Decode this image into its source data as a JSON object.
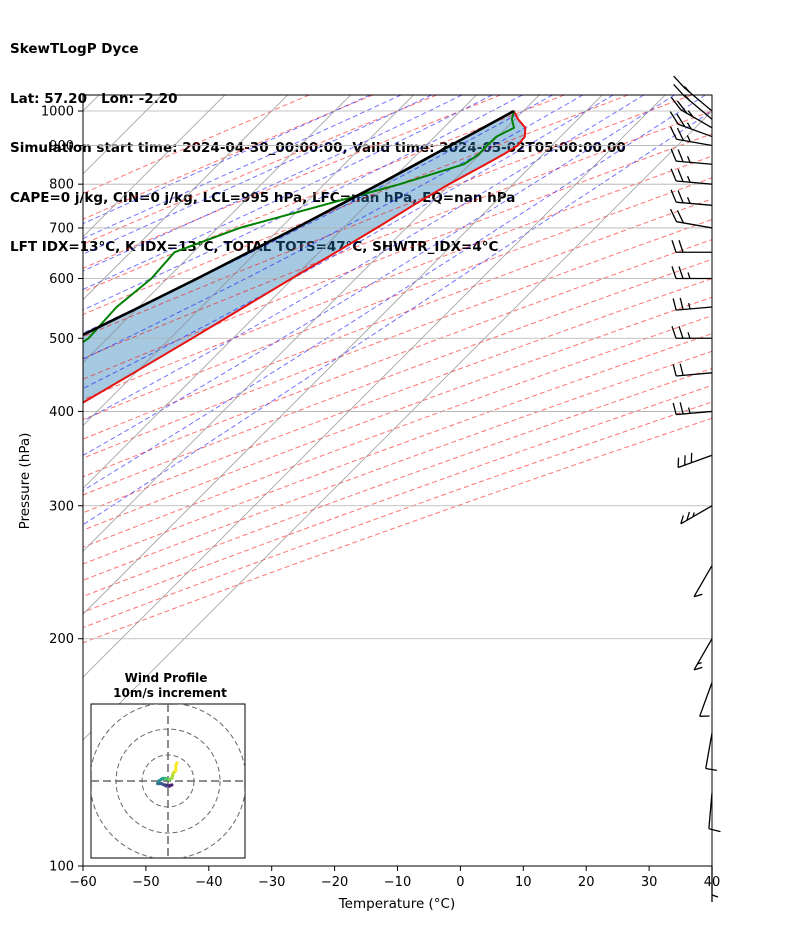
{
  "header": {
    "line1": "SkewTLogP Dyce",
    "line2": "Lat: 57.20   Lon: -2.20",
    "line3": "Simulation start time: 2024-04-30_00:00:00, Valid time: 2024-05-02T05:00:00.00",
    "line4": "CAPE=0 j/kg, CIN=0 j/kg, LCL=995 hPa, LFC=nan hPa, EQ=nan hPa",
    "line5": "LFT IDX=13°C, K IDX=13°C, TOTAL TOTS=47°C, SHWTR_IDX=4°C"
  },
  "chart_data": {
    "type": "line",
    "xlabel": "Temperature (°C)",
    "ylabel": "Pressure (hPa)",
    "xlim": [
      -60,
      40
    ],
    "ylim": [
      1050,
      100
    ],
    "yscale": "log",
    "skew_deg": 45,
    "x_ticks": [
      "−60",
      "−50",
      "−40",
      "−30",
      "−20",
      "−10",
      "0",
      "10",
      "20",
      "30",
      "40"
    ],
    "x_tick_values": [
      -60,
      -50,
      -40,
      -30,
      -20,
      -10,
      0,
      10,
      20,
      30,
      40
    ],
    "y_ticks": [
      "100",
      "200",
      "300",
      "400",
      "500",
      "600",
      "700",
      "800",
      "900",
      "1000"
    ],
    "y_tick_values": [
      100,
      200,
      300,
      400,
      500,
      600,
      700,
      800,
      900,
      1000
    ],
    "grid": true,
    "series": [
      {
        "role": "temperature",
        "color": "#e8110f",
        "p": [
          1000,
          975,
          950,
          925,
          900,
          875,
          850,
          800,
          750,
          700,
          650,
          600,
          550,
          500,
          450,
          400,
          350,
          325,
          300,
          275,
          250,
          235,
          225,
          210,
          200,
          175,
          150,
          125,
          110,
          100
        ],
        "t": [
          8.5,
          10.5,
          13.0,
          14.3,
          14.6,
          13.7,
          12.5,
          9.8,
          7.5,
          5.3,
          2.7,
          -0.2,
          -3.2,
          -6.5,
          -10.3,
          -14.6,
          -19.8,
          -22.9,
          -26.4,
          -30.6,
          -35.5,
          -39.2,
          -41.8,
          -45.0,
          -47.2,
          -46.0,
          -45.0,
          -45.2,
          -45.6,
          -46.0
        ]
      },
      {
        "role": "dewpoint",
        "color": "#008000",
        "p": [
          1000,
          975,
          950,
          925,
          900,
          875,
          850,
          800,
          700,
          650,
          600,
          550,
          500,
          450,
          400,
          350,
          325,
          300,
          270,
          250,
          230,
          210,
          200,
          185,
          175,
          150,
          125,
          110,
          100
        ],
        "t": [
          8.5,
          9.5,
          11.2,
          9.8,
          9.7,
          9.8,
          9.0,
          2.0,
          -16.5,
          -23.0,
          -22.5,
          -23.5,
          -23.0,
          -25.5,
          -31.0,
          -36.0,
          -43.0,
          -47.0,
          -53.5,
          -54.5,
          -57.0,
          -59.0,
          -59.5,
          -58.5,
          -63.0,
          -69.0,
          -72.0,
          -74.0,
          -76.0
        ]
      },
      {
        "role": "parcel",
        "color": "#000000",
        "p": [
          1000,
          950,
          900,
          850,
          800,
          750,
          700,
          650,
          600,
          550,
          500,
          450,
          400,
          350,
          300,
          250,
          200,
          150,
          125,
          100
        ],
        "t": [
          8.5,
          6.3,
          3.9,
          1.4,
          -1.3,
          -4.3,
          -7.5,
          -11.2,
          -15.2,
          -19.8,
          -25.0,
          -30.9,
          -37.5,
          -45.3,
          -54.3,
          -64.8,
          -77.5,
          -92.8,
          -101.8,
          -111.8
        ]
      }
    ],
    "wind_barbs": {
      "side": "right",
      "p": [
        1000,
        975,
        950,
        925,
        900,
        850,
        800,
        750,
        700,
        650,
        600,
        550,
        500,
        450,
        400,
        350,
        300,
        250,
        200,
        175,
        150,
        125,
        100
      ],
      "speed_kt": [
        15,
        15,
        25,
        25,
        25,
        25,
        25,
        25,
        20,
        20,
        25,
        25,
        25,
        20,
        25,
        30,
        25,
        10,
        15,
        10,
        10,
        10,
        5
      ],
      "dir_deg": [
        230,
        230,
        240,
        250,
        260,
        265,
        265,
        265,
        260,
        270,
        270,
        275,
        270,
        275,
        275,
        290,
        300,
        330,
        330,
        340,
        350,
        355,
        360
      ]
    },
    "inset": {
      "title_line1": "Wind Profile",
      "title_line2": "10m/s increment",
      "u": [
        -1.0,
        0.5,
        1.5,
        -0.5,
        -2.5,
        -4.0,
        -3.5,
        -2.0,
        -1.0,
        0.5,
        1.5,
        2.0,
        3.0,
        3.0,
        3.5
      ],
      "v": [
        -1.5,
        -2.0,
        -1.5,
        -2.0,
        -1.0,
        -1.0,
        0.0,
        1.0,
        1.0,
        0.5,
        1.0,
        3.0,
        4.0,
        6.0,
        7.0
      ],
      "rings_ms": [
        10,
        20
      ]
    }
  }
}
